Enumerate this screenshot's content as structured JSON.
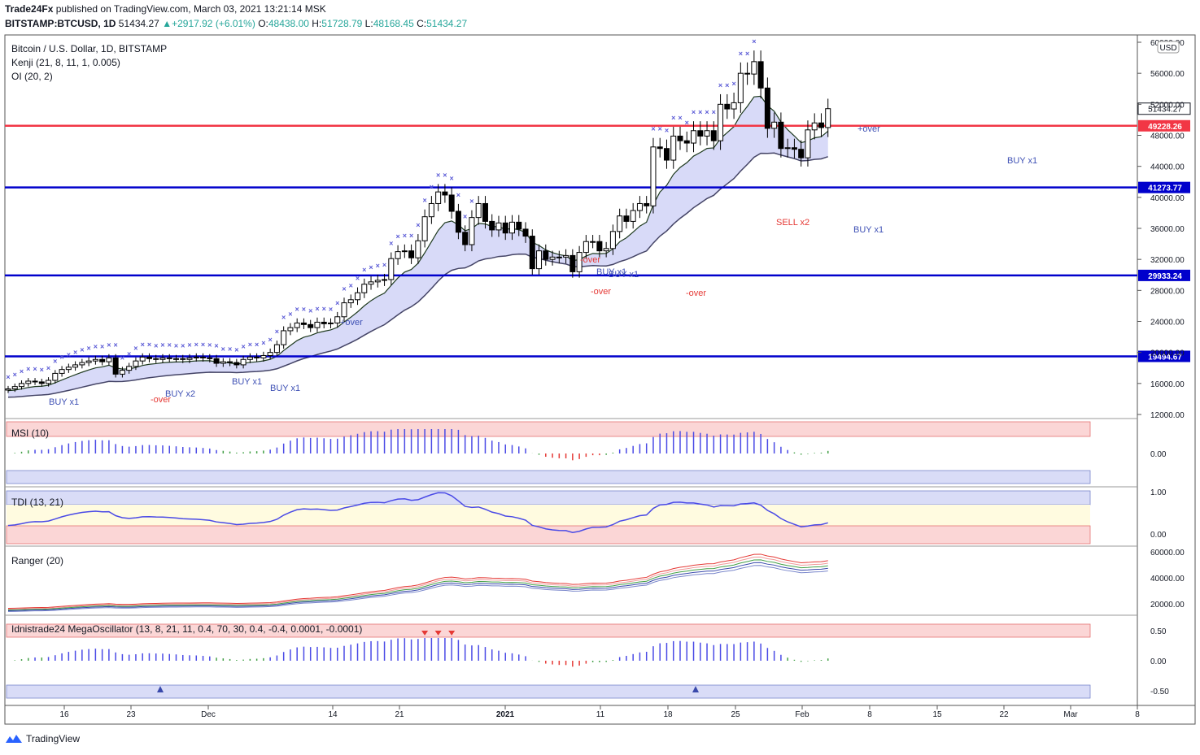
{
  "header": {
    "author": "Trade24Fx",
    "published_text": "published on TradingView.com, March 03, 2021 13:21:14 MSK",
    "symbol": "BITSTAMP:BTCUSD, 1D",
    "last": "51434.27",
    "change": "+2917.92 (+6.01%)",
    "o_label": "O:",
    "o_value": "48438.00",
    "h_label": "H:",
    "h_value": "51728.79",
    "l_label": "L:",
    "l_value": "48168.45",
    "c_label": "C:",
    "c_value": "51434.27"
  },
  "legend": {
    "main_title": "Bitcoin / U.S. Dollar, 1D, BITSTAMP",
    "kenji": "Kenji (21, 8, 11, 1, 0.005)",
    "oi": "OI (20, 2)",
    "msi": "MSI (10)",
    "tdi": "TDI (13, 21)",
    "ranger": "Ranger (20)",
    "mega": "Idnistrade24 MegaOscillator (13, 8, 21, 11, 0.4, 70, 30, 0.4, -0.4, 0.0001, -0.0001)"
  },
  "currency": "USD",
  "footer": {
    "brand": "TradingView"
  },
  "colors": {
    "bull": "#ffffff",
    "bear": "#000000",
    "blue_line": "#0000cc",
    "red_line": "#f23645",
    "cloud": "#c7cbf5",
    "cloud_green": "#b7dbb5",
    "cross": "#5b5bd6",
    "osc_blue": "#4a4ae6",
    "osc_red": "#e53935",
    "osc_green": "#43a047"
  },
  "chart_data": {
    "type": "candlestick",
    "x_ticks": [
      "16",
      "23",
      "Dec",
      "14",
      "21",
      "2021",
      "11",
      "18",
      "25",
      "Feb",
      "8",
      "15",
      "22",
      "Mar",
      "8"
    ],
    "y_ticks": [
      "60000.00",
      "56000.00",
      "52000.00",
      "48000.00",
      "44000.00",
      "40000.00",
      "36000.00",
      "32000.00",
      "28000.00",
      "24000.00",
      "20000.00",
      "16000.00",
      "12000.00"
    ],
    "y_range": [
      12000,
      60000
    ],
    "levels": [
      {
        "value": 49228.26,
        "label": "49228.26",
        "color": "red"
      },
      {
        "value": 41273.77,
        "label": "41273.77",
        "color": "blue"
      },
      {
        "value": 29933.24,
        "label": "29933.24",
        "color": "blue"
      },
      {
        "value": 19494.67,
        "label": "19494.67",
        "color": "blue"
      }
    ],
    "last_price_label": "51434.27",
    "close": [
      15300,
      15600,
      16000,
      16300,
      16200,
      16000,
      16400,
      17300,
      17800,
      18100,
      18400,
      18700,
      18900,
      19100,
      18800,
      19300,
      17200,
      17700,
      18200,
      18900,
      19400,
      19200,
      19100,
      19300,
      19200,
      19200,
      19100,
      19300,
      19400,
      19300,
      19200,
      18600,
      18800,
      18700,
      18400,
      19100,
      19400,
      19300,
      19600,
      20000,
      21000,
      22800,
      23200,
      23800,
      23600,
      23200,
      23900,
      23700,
      23800,
      24600,
      26400,
      26800,
      27700,
      28800,
      29100,
      29300,
      29400,
      32100,
      33000,
      33100,
      32200,
      34400,
      37500,
      39200,
      40700,
      40300,
      38200,
      35500,
      33900,
      37400,
      39200,
      36900,
      35800,
      36700,
      35400,
      36800,
      35900,
      35000,
      30800,
      33100,
      32000,
      32300,
      32300,
      32500,
      30400,
      32900,
      34300,
      34300,
      33100,
      33400,
      35600,
      37600,
      36900,
      38300,
      39200,
      38900,
      46500,
      46300,
      44800,
      47900,
      47300,
      47000,
      48600,
      47900,
      48600,
      47300,
      52000,
      51400,
      52200,
      56000,
      55900,
      57500,
      54100,
      48900,
      49700,
      46300,
      46400,
      46200,
      45100,
      48700,
      49600,
      49000,
      51434
    ],
    "annotations": [
      "BUY x1",
      "-over",
      "BUY x2",
      "BUY x1",
      "BUY x1",
      "+over",
      "-over",
      "BUY x1",
      "BUY x1",
      "-over",
      "-over",
      "SELL x2",
      "BUY x1",
      "+over",
      "BUY x1"
    ],
    "panes": [
      {
        "name": "MSI (10)",
        "ticks": [
          "0.00"
        ]
      },
      {
        "name": "TDI (13, 21)",
        "ticks": [
          "1.00",
          "0.00"
        ]
      },
      {
        "name": "Ranger (20)",
        "ticks": [
          "60000.00",
          "40000.00",
          "20000.00"
        ]
      },
      {
        "name": "Idnistrade24 MegaOscillator",
        "ticks": [
          "0.50",
          "0.00",
          "-0.50"
        ]
      }
    ]
  }
}
